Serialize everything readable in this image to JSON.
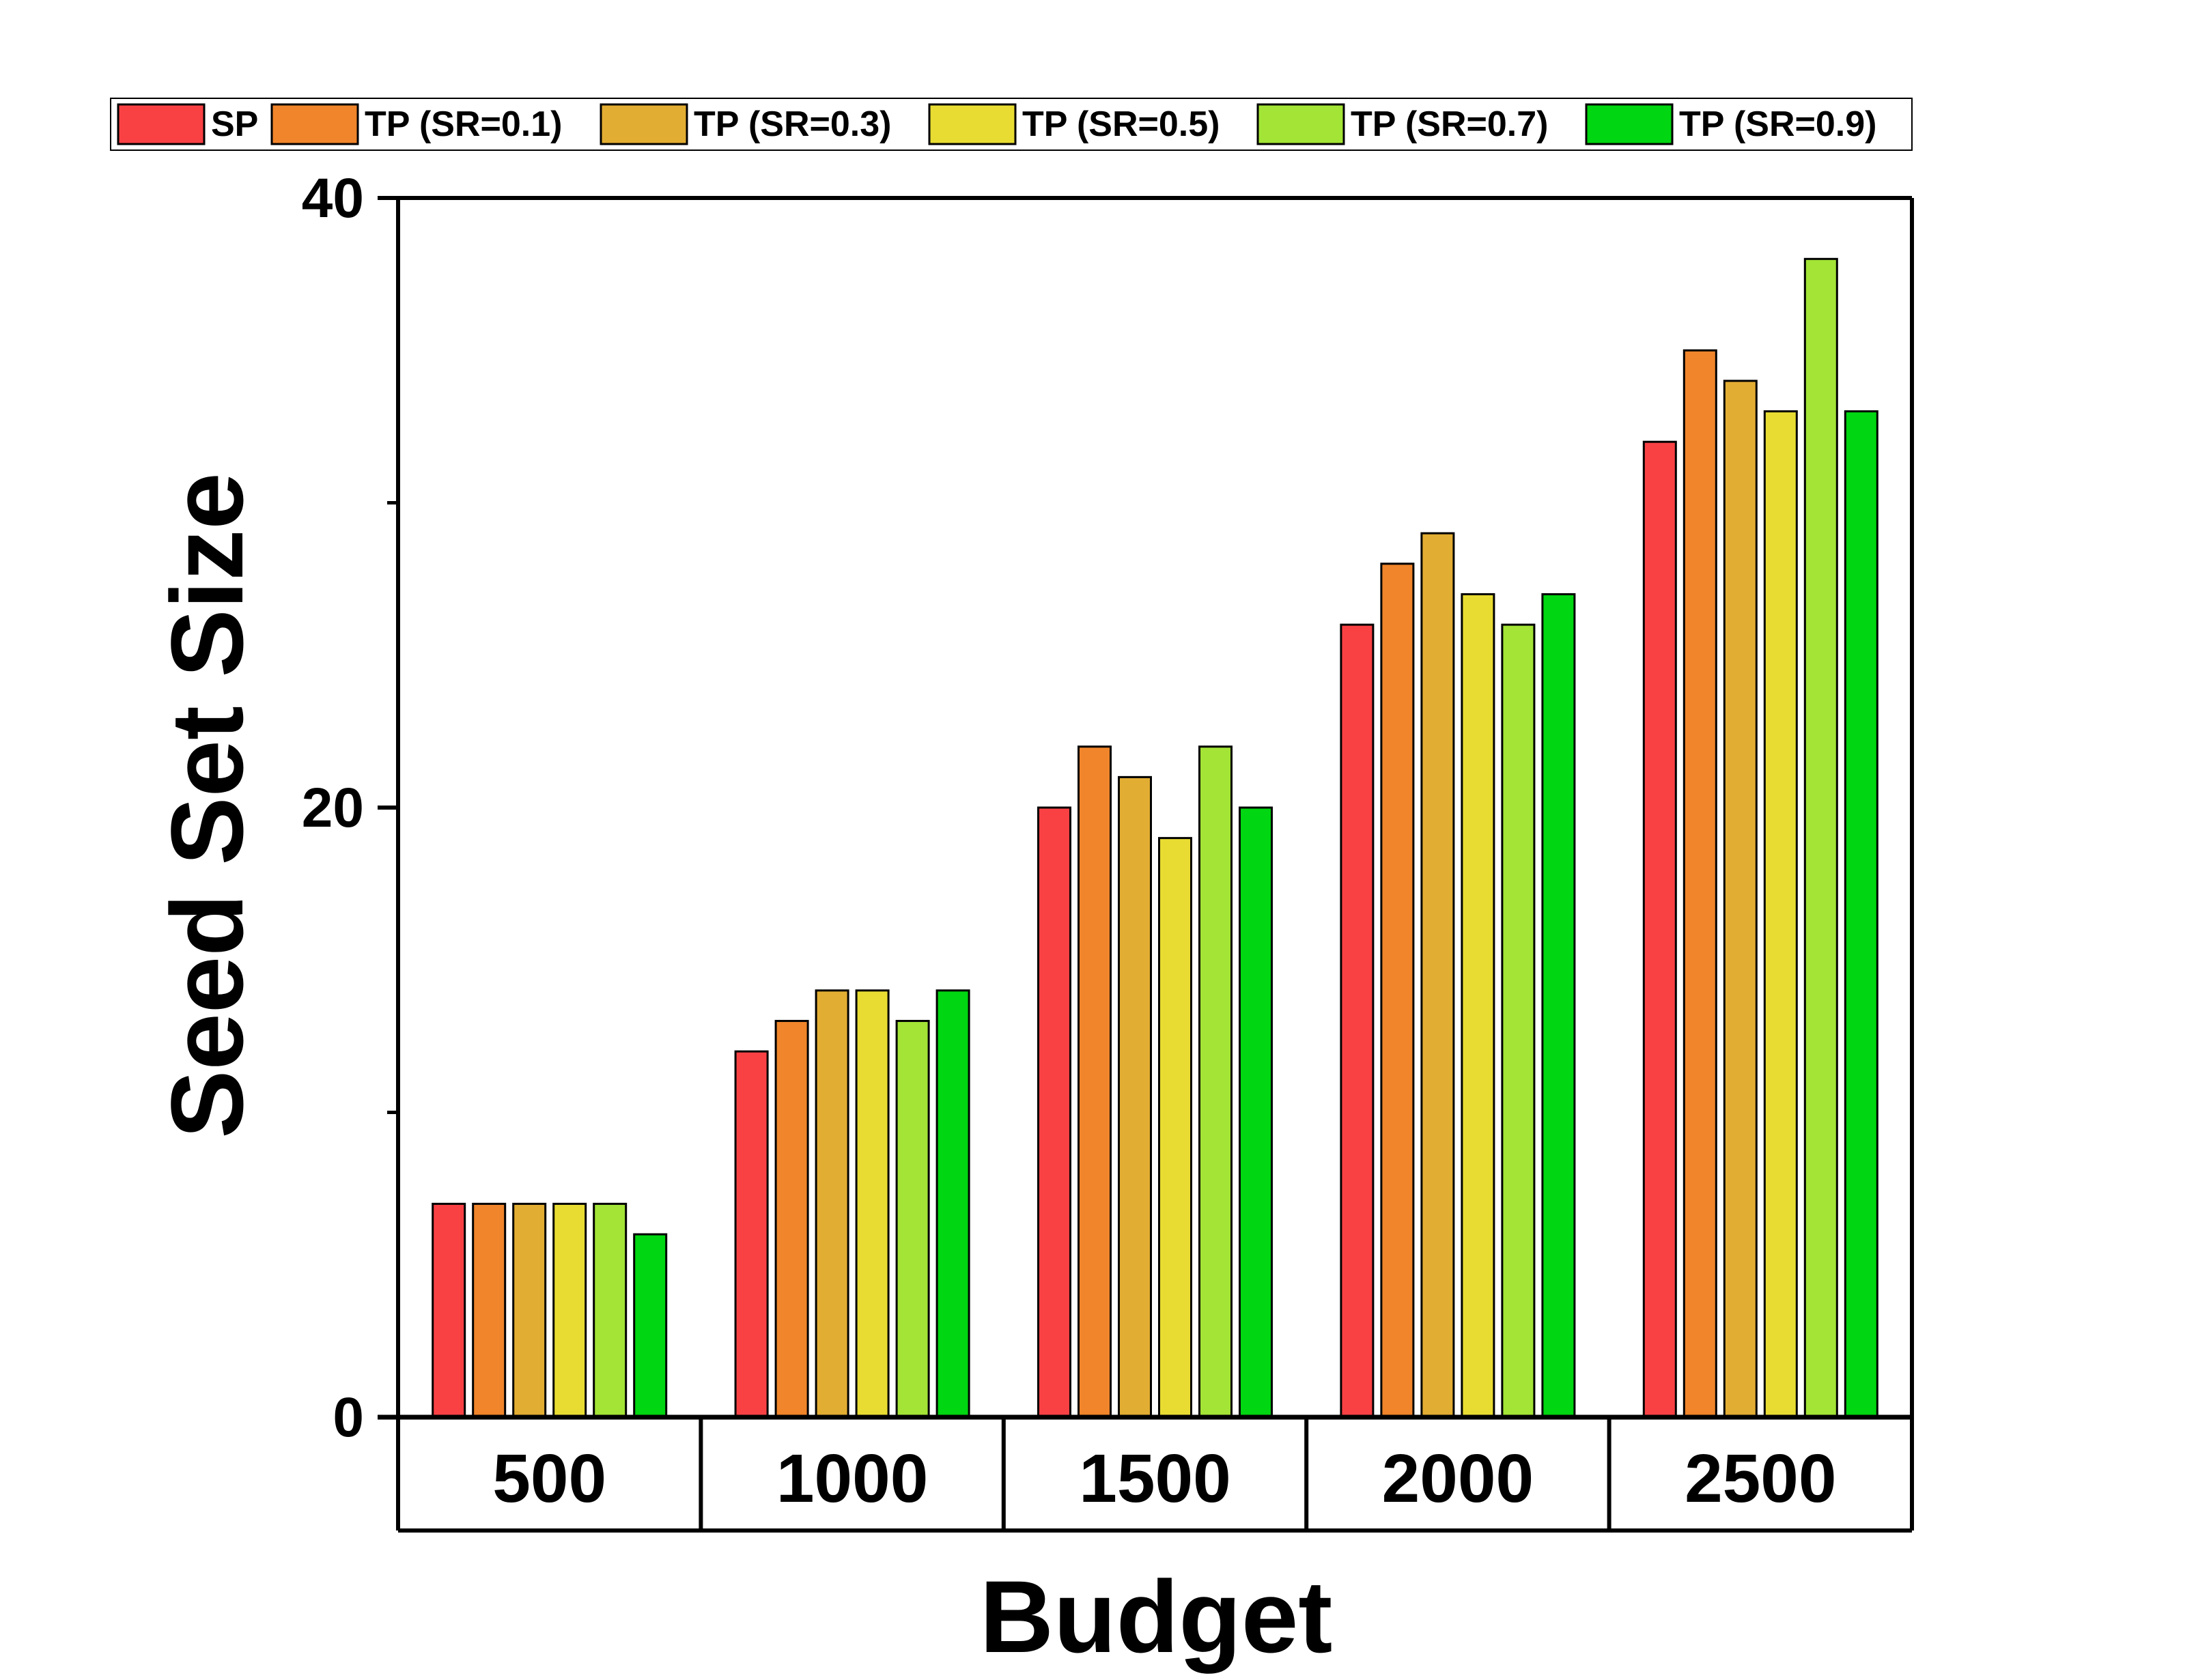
{
  "chart_data": {
    "type": "bar",
    "title": "",
    "xlabel": "Budget",
    "ylabel": "Seed Set Size",
    "categories": [
      "500",
      "1000",
      "1500",
      "2000",
      "2500"
    ],
    "ylim": [
      0,
      40
    ],
    "yticks": [
      0,
      20,
      40
    ],
    "yticks_minor": [
      10,
      30
    ],
    "y_tick_labels": [
      "0",
      "20",
      "40"
    ],
    "grid": false,
    "legend_position": "top",
    "series": [
      {
        "name": "SP",
        "color": "#f94144",
        "values": [
          7,
          12,
          20,
          26,
          32
        ]
      },
      {
        "name": "TP (SR=0.1)",
        "color": "#f0852b",
        "values": [
          7,
          13,
          22,
          28,
          35
        ]
      },
      {
        "name": "TP (SR=0.3)",
        "color": "#e2ad33",
        "values": [
          7,
          14,
          21,
          29,
          34
        ]
      },
      {
        "name": "TP (SR=0.5)",
        "color": "#e8dc33",
        "values": [
          7,
          14,
          19,
          27,
          33
        ]
      },
      {
        "name": "TP (SR=0.7)",
        "color": "#a3e436",
        "values": [
          7,
          13,
          22,
          26,
          38
        ]
      },
      {
        "name": "TP (SR=0.9)",
        "color": "#00d611",
        "values": [
          6,
          14,
          20,
          27,
          33
        ]
      }
    ]
  }
}
